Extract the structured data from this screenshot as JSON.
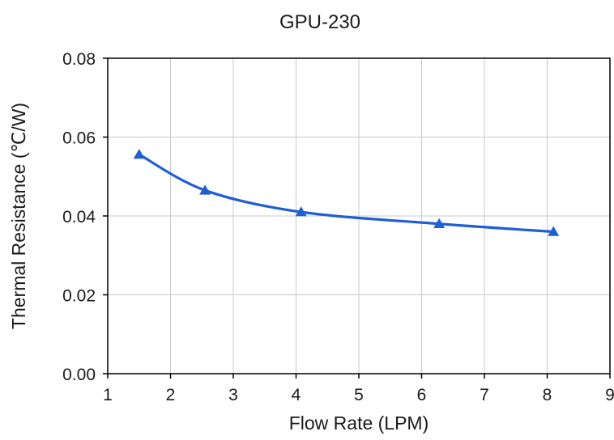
{
  "chart_data": {
    "type": "line",
    "title": "GPU-230",
    "xlabel": "Flow Rate (LPM)",
    "ylabel": "Thermal Resistance (℃/W)",
    "xlim": [
      1,
      9
    ],
    "ylim": [
      0,
      0.08
    ],
    "x_ticks": [
      1,
      2,
      3,
      4,
      5,
      6,
      7,
      8,
      9
    ],
    "y_ticks": [
      0,
      0.02,
      0.04,
      0.06,
      0.08
    ],
    "x_tick_labels": [
      "1",
      "2",
      "3",
      "4",
      "5",
      "6",
      "7",
      "8",
      "9"
    ],
    "y_tick_labels": [
      "0.00",
      "0.02",
      "0.04",
      "0.06",
      "0.08"
    ],
    "grid": true,
    "legend": "none",
    "series": [
      {
        "color": "#1f5fd6",
        "marker": "triangle",
        "smooth": true,
        "x": [
          1.5,
          2.55,
          4.08,
          6.28,
          8.1
        ],
        "y": [
          0.0556,
          0.0465,
          0.041,
          0.038,
          0.036
        ]
      }
    ]
  }
}
